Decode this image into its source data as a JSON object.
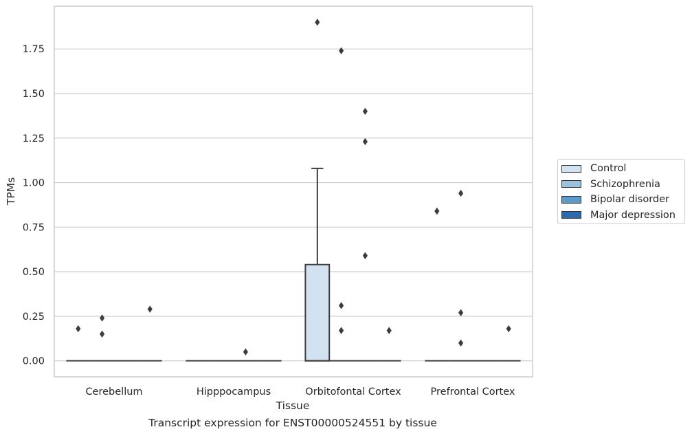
{
  "chart_data": {
    "type": "box",
    "xlabel": "Tissue",
    "ylabel": "TPMs",
    "caption": "Transcript expression for ENST00000524551 by tissue",
    "categories": [
      "Cerebellum",
      "Hipppocampus",
      "Orbitofontal Cortex",
      "Prefrontal Cortex"
    ],
    "ylim": [
      -0.09,
      1.99
    ],
    "yticks": [
      "0.00",
      "0.25",
      "0.50",
      "0.75",
      "1.00",
      "1.25",
      "1.50",
      "1.75"
    ],
    "grid": "horizontal",
    "legend": "outside-right",
    "series": [
      {
        "name": "Control",
        "color": "#d2e2f0",
        "boxes": [
          {
            "category": "Cerebellum",
            "q1": 0,
            "median": 0,
            "q3": 0,
            "whisker_low": 0,
            "whisker_high": 0,
            "outliers": [
              0.18
            ]
          },
          {
            "category": "Hipppocampus",
            "q1": 0,
            "median": 0,
            "q3": 0,
            "whisker_low": 0,
            "whisker_high": 0,
            "outliers": []
          },
          {
            "category": "Orbitofontal Cortex",
            "q1": 0,
            "median": 0,
            "q3": 0.54,
            "whisker_low": 0,
            "whisker_high": 1.08,
            "outliers": [
              1.9
            ]
          },
          {
            "category": "Prefrontal Cortex",
            "q1": 0,
            "median": 0,
            "q3": 0,
            "whisker_low": 0,
            "whisker_high": 0,
            "outliers": [
              0.84
            ]
          }
        ]
      },
      {
        "name": "Schizophrenia",
        "color": "#9ac1dd",
        "boxes": [
          {
            "category": "Cerebellum",
            "q1": 0,
            "median": 0,
            "q3": 0,
            "whisker_low": 0,
            "whisker_high": 0,
            "outliers": [
              0.15,
              0.24
            ]
          },
          {
            "category": "Hipppocampus",
            "q1": 0,
            "median": 0,
            "q3": 0,
            "whisker_low": 0,
            "whisker_high": 0,
            "outliers": []
          },
          {
            "category": "Orbitofontal Cortex",
            "q1": 0,
            "median": 0,
            "q3": 0,
            "whisker_low": 0,
            "whisker_high": 0,
            "outliers": [
              0.17,
              0.31,
              1.74
            ]
          },
          {
            "category": "Prefrontal Cortex",
            "q1": 0,
            "median": 0,
            "q3": 0,
            "whisker_low": 0,
            "whisker_high": 0,
            "outliers": [
              0.1,
              0.27,
              0.94
            ]
          }
        ]
      },
      {
        "name": "Bipolar disorder",
        "color": "#5b9bc9",
        "boxes": [
          {
            "category": "Cerebellum",
            "q1": 0,
            "median": 0,
            "q3": 0,
            "whisker_low": 0,
            "whisker_high": 0,
            "outliers": []
          },
          {
            "category": "Hipppocampus",
            "q1": 0,
            "median": 0,
            "q3": 0,
            "whisker_low": 0,
            "whisker_high": 0,
            "outliers": [
              0.05
            ]
          },
          {
            "category": "Orbitofontal Cortex",
            "q1": 0,
            "median": 0,
            "q3": 0,
            "whisker_low": 0,
            "whisker_high": 0,
            "outliers": [
              0.59,
              1.23,
              1.4
            ]
          },
          {
            "category": "Prefrontal Cortex",
            "q1": 0,
            "median": 0,
            "q3": 0,
            "whisker_low": 0,
            "whisker_high": 0,
            "outliers": []
          }
        ]
      },
      {
        "name": "Major depression",
        "color": "#2a6aad",
        "boxes": [
          {
            "category": "Cerebellum",
            "q1": 0,
            "median": 0,
            "q3": 0,
            "whisker_low": 0,
            "whisker_high": 0,
            "outliers": [
              0.29
            ]
          },
          {
            "category": "Hipppocampus",
            "q1": 0,
            "median": 0,
            "q3": 0,
            "whisker_low": 0,
            "whisker_high": 0,
            "outliers": []
          },
          {
            "category": "Orbitofontal Cortex",
            "q1": 0,
            "median": 0,
            "q3": 0,
            "whisker_low": 0,
            "whisker_high": 0,
            "outliers": [
              0.17
            ]
          },
          {
            "category": "Prefrontal Cortex",
            "q1": 0,
            "median": 0,
            "q3": 0,
            "whisker_low": 0,
            "whisker_high": 0,
            "outliers": [
              0.18
            ]
          }
        ]
      }
    ]
  }
}
